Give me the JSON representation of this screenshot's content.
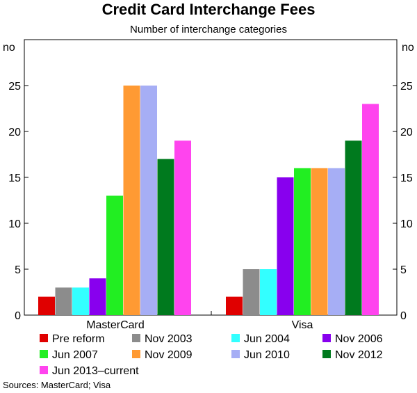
{
  "chart_data": {
    "type": "bar",
    "title": "Credit Card Interchange Fees",
    "subtitle": "Number of interchange categories",
    "ylabel_left": "no",
    "ylabel_right": "no",
    "ylim": [
      0,
      30
    ],
    "yticks": [
      0,
      5,
      10,
      15,
      20,
      25
    ],
    "categories": [
      "MasterCard",
      "Visa"
    ],
    "series": [
      {
        "name": "Pre reform",
        "color": "#e00000",
        "values": [
          2,
          2
        ]
      },
      {
        "name": "Nov 2003",
        "color": "#8c8c8c",
        "values": [
          3,
          5
        ]
      },
      {
        "name": "Jun 2004",
        "color": "#33ffff",
        "values": [
          3,
          5
        ]
      },
      {
        "name": "Nov 2006",
        "color": "#8800ee",
        "values": [
          4,
          15
        ]
      },
      {
        "name": "Jun 2007",
        "color": "#22ee22",
        "values": [
          13,
          16
        ]
      },
      {
        "name": "Nov 2009",
        "color": "#ff9a33",
        "values": [
          25,
          16
        ]
      },
      {
        "name": "Jun 2010",
        "color": "#a6aef5",
        "values": [
          25,
          16
        ]
      },
      {
        "name": "Nov 2012",
        "color": "#007a1e",
        "values": [
          17,
          19
        ]
      },
      {
        "name": "Jun 2013–current",
        "color": "#ff44ee",
        "values": [
          19,
          23
        ]
      }
    ],
    "source": "Sources: MasterCard; Visa"
  }
}
